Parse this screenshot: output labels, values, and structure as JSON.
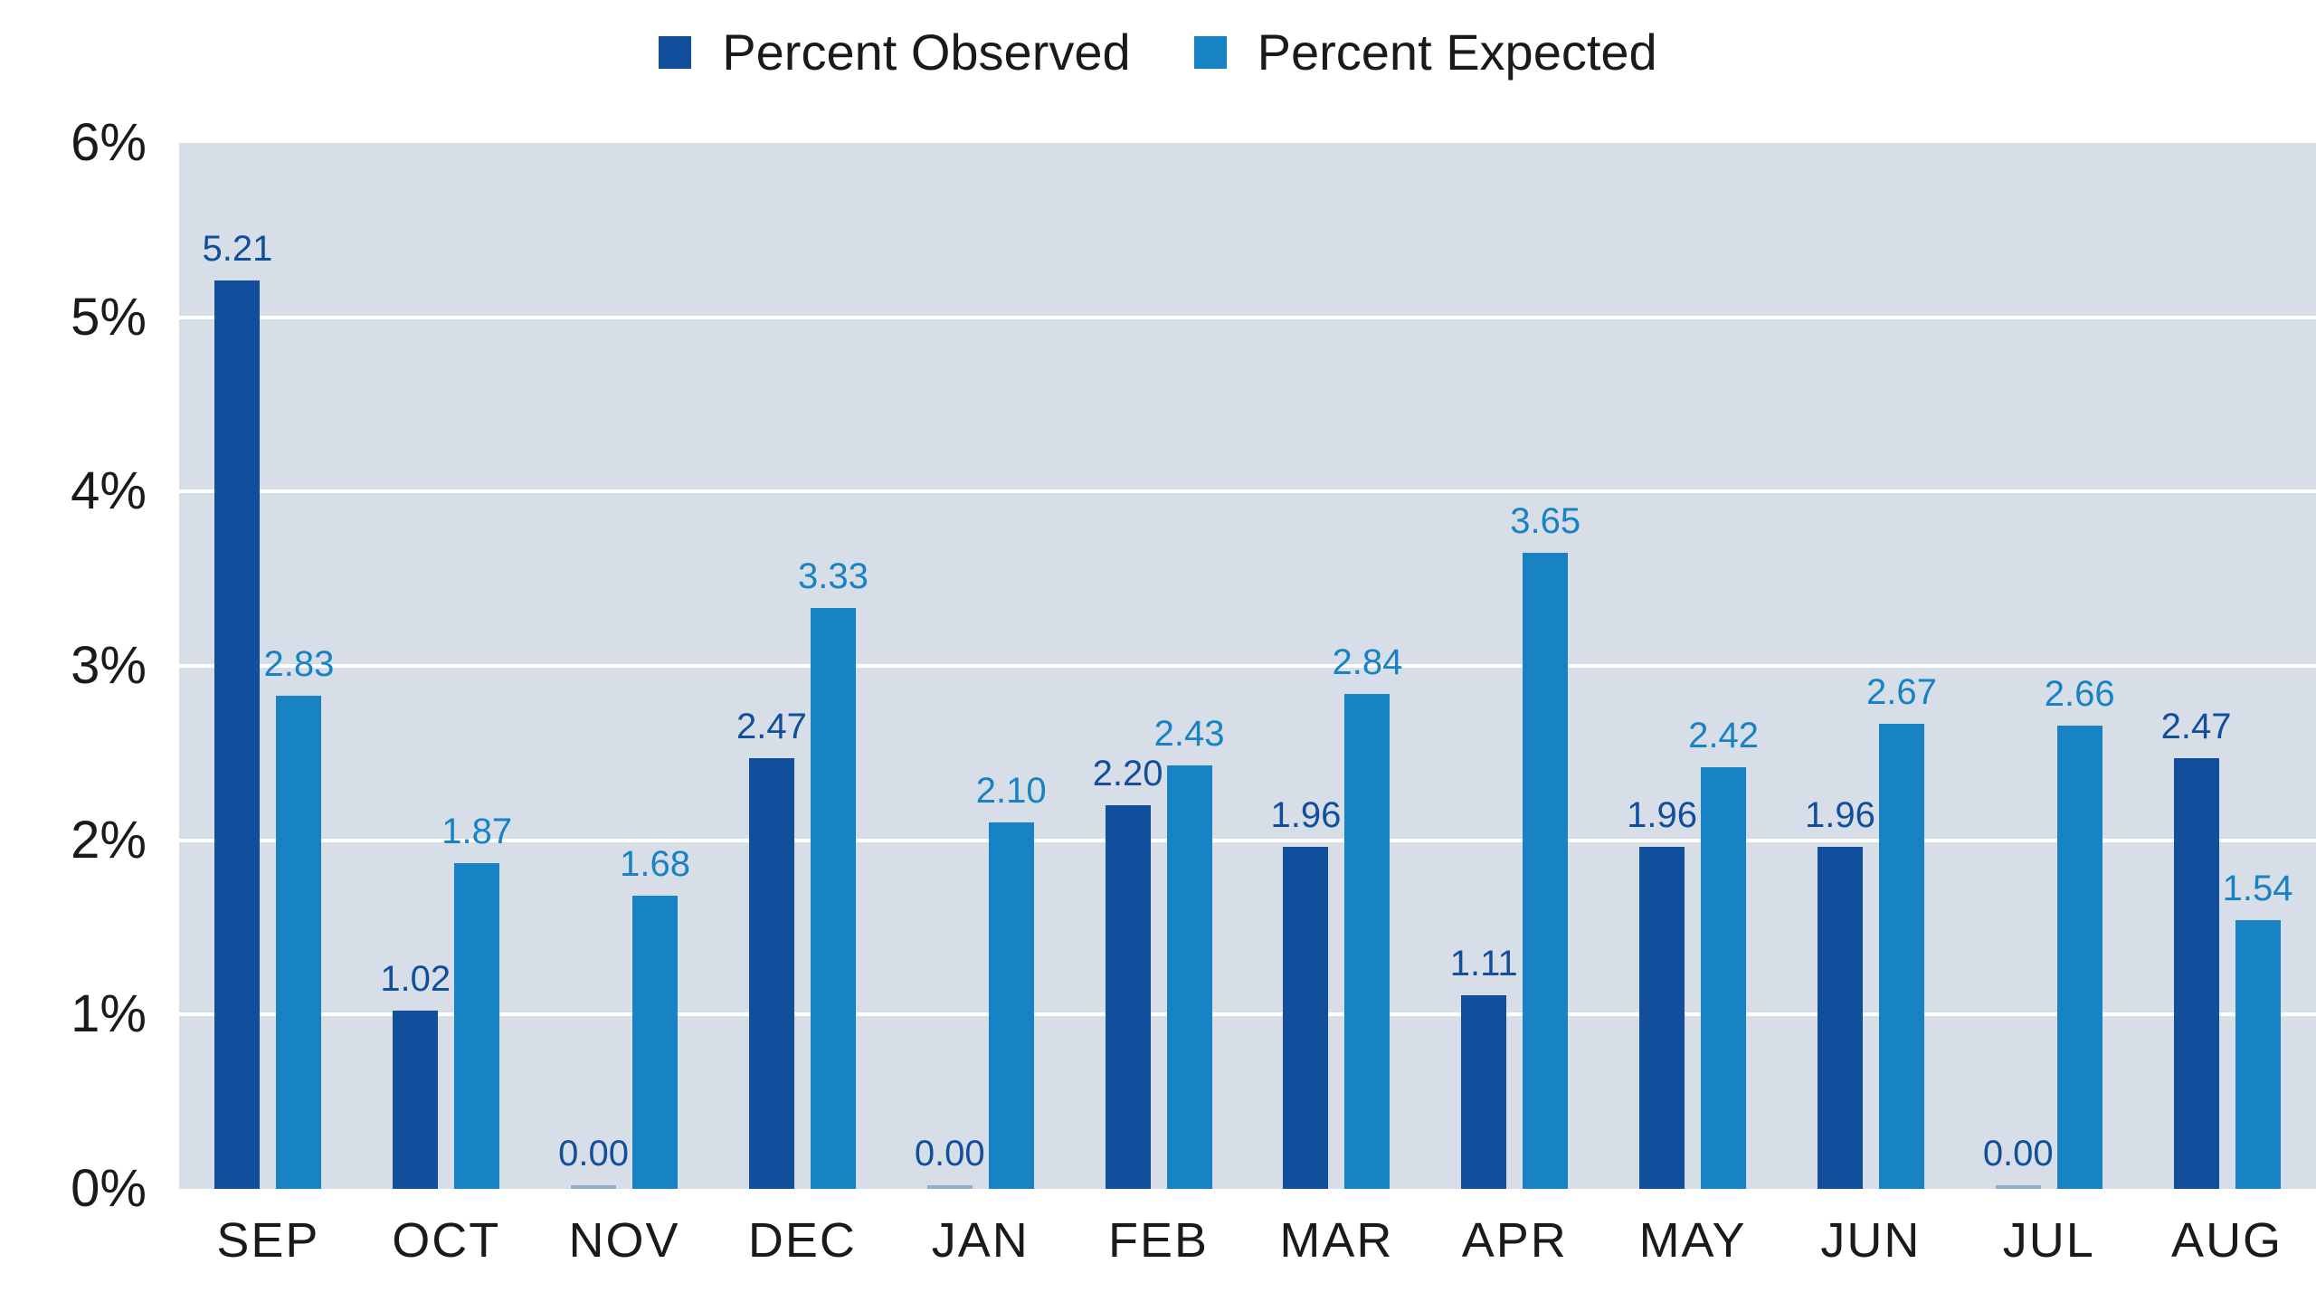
{
  "chart_data": {
    "type": "bar",
    "title": "",
    "xlabel": "",
    "ylabel": "",
    "categories": [
      "SEP",
      "OCT",
      "NOV",
      "DEC",
      "JAN",
      "FEB",
      "MAR",
      "APR",
      "MAY",
      "JUN",
      "JUL",
      "AUG"
    ],
    "series": [
      {
        "name": "Percent Observed",
        "color": "#114F9C",
        "values": [
          5.21,
          1.02,
          0.0,
          2.47,
          0.0,
          2.2,
          1.96,
          1.11,
          1.96,
          1.96,
          0.0,
          2.47
        ]
      },
      {
        "name": "Percent Expected",
        "color": "#1783C5",
        "values": [
          2.83,
          1.87,
          1.68,
          3.33,
          2.1,
          2.43,
          2.84,
          3.65,
          2.42,
          2.67,
          2.66,
          1.54
        ]
      }
    ],
    "value_label_decimals": 2,
    "y_axis": {
      "min": 0,
      "max": 6,
      "tick_labels": [
        "0%",
        "1%",
        "2%",
        "3%",
        "4%",
        "5%",
        "6%"
      ]
    },
    "legend_position": "top-center",
    "grid": "horizontal",
    "colors": {
      "plot_background": "#D7DEE7",
      "gridline": "#FFFFFF",
      "axis_text": "#1A1A1A",
      "zero_bar_sliver": "#92ADCD"
    }
  }
}
